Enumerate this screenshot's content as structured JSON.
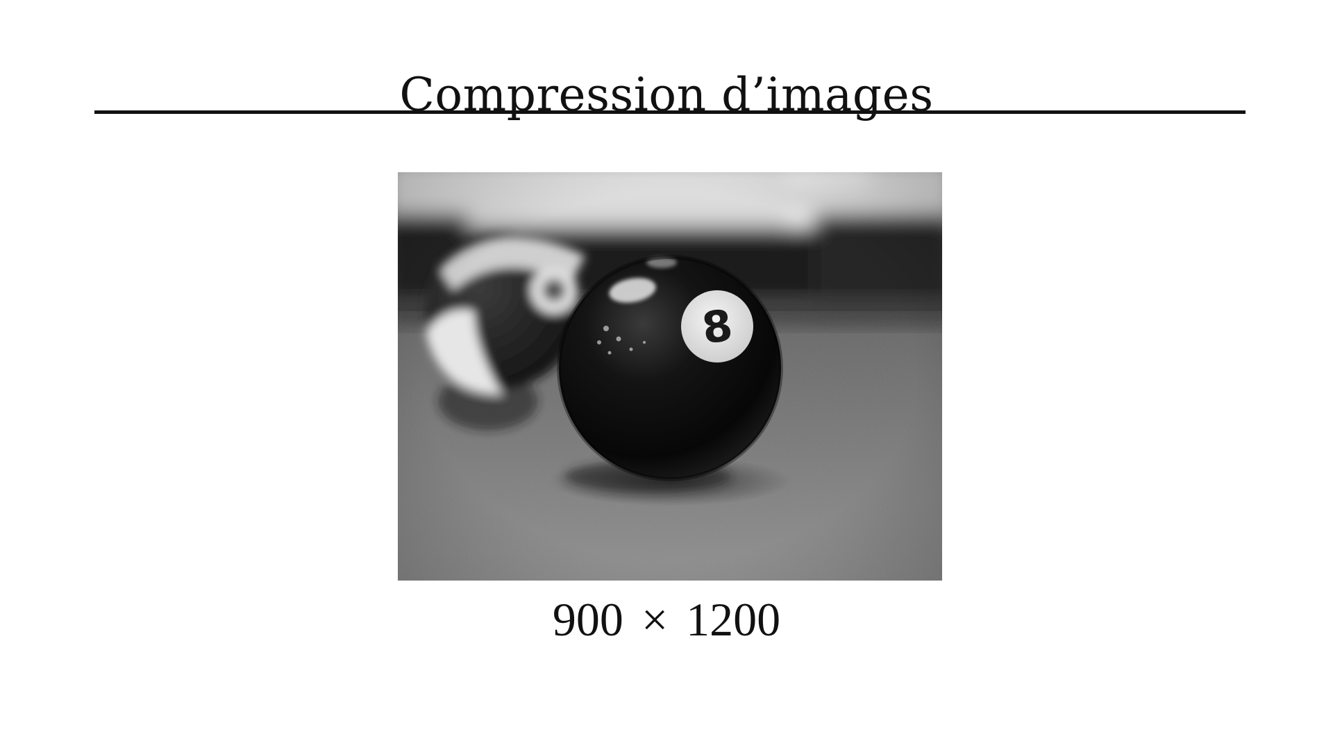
{
  "slide": {
    "title": "Compression d’images",
    "image": {
      "subject": "eight-ball-photo",
      "ball_number": "8"
    },
    "caption": {
      "width_value": "900",
      "times_symbol": "×",
      "height_value": "1200"
    }
  },
  "colors": {
    "background": "#ffffff",
    "text": "#111111",
    "rule": "#111111"
  }
}
